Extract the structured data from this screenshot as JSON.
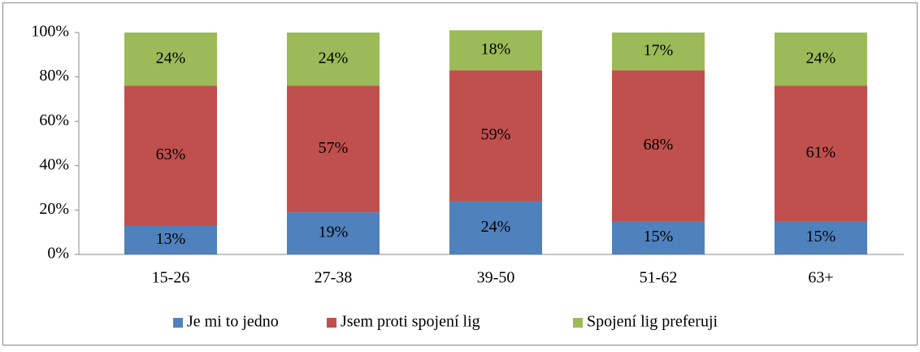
{
  "chart_data": {
    "type": "stacked_bar",
    "categories": [
      "15-26",
      "27-38",
      "39-50",
      "51-62",
      "63+"
    ],
    "series": [
      {
        "name": "Je mi to jedno",
        "color": "#4f81bd",
        "values": [
          13,
          19,
          24,
          15,
          15
        ],
        "value_labels": [
          "13%",
          "19%",
          "24%",
          "15%",
          "15%"
        ]
      },
      {
        "name": "Jsem proti spojení lig",
        "color": "#c0504d",
        "values": [
          63,
          57,
          59,
          68,
          61
        ],
        "value_labels": [
          "63%",
          "57%",
          "59%",
          "68%",
          "61%"
        ]
      },
      {
        "name": "Spojení lig preferuji",
        "color": "#9bbb59",
        "values": [
          24,
          24,
          18,
          17,
          24
        ],
        "value_labels": [
          "24%",
          "24%",
          "18%",
          "17%",
          "24%"
        ]
      }
    ],
    "ylim": [
      0,
      100
    ],
    "yticks": [
      {
        "value": 0,
        "label": "0%"
      },
      {
        "value": 20,
        "label": "20%"
      },
      {
        "value": 40,
        "label": "40%"
      },
      {
        "value": 60,
        "label": "60%"
      },
      {
        "value": 80,
        "label": "80%"
      },
      {
        "value": 100,
        "label": "100%"
      }
    ],
    "grid": false,
    "legend": "bottom"
  }
}
